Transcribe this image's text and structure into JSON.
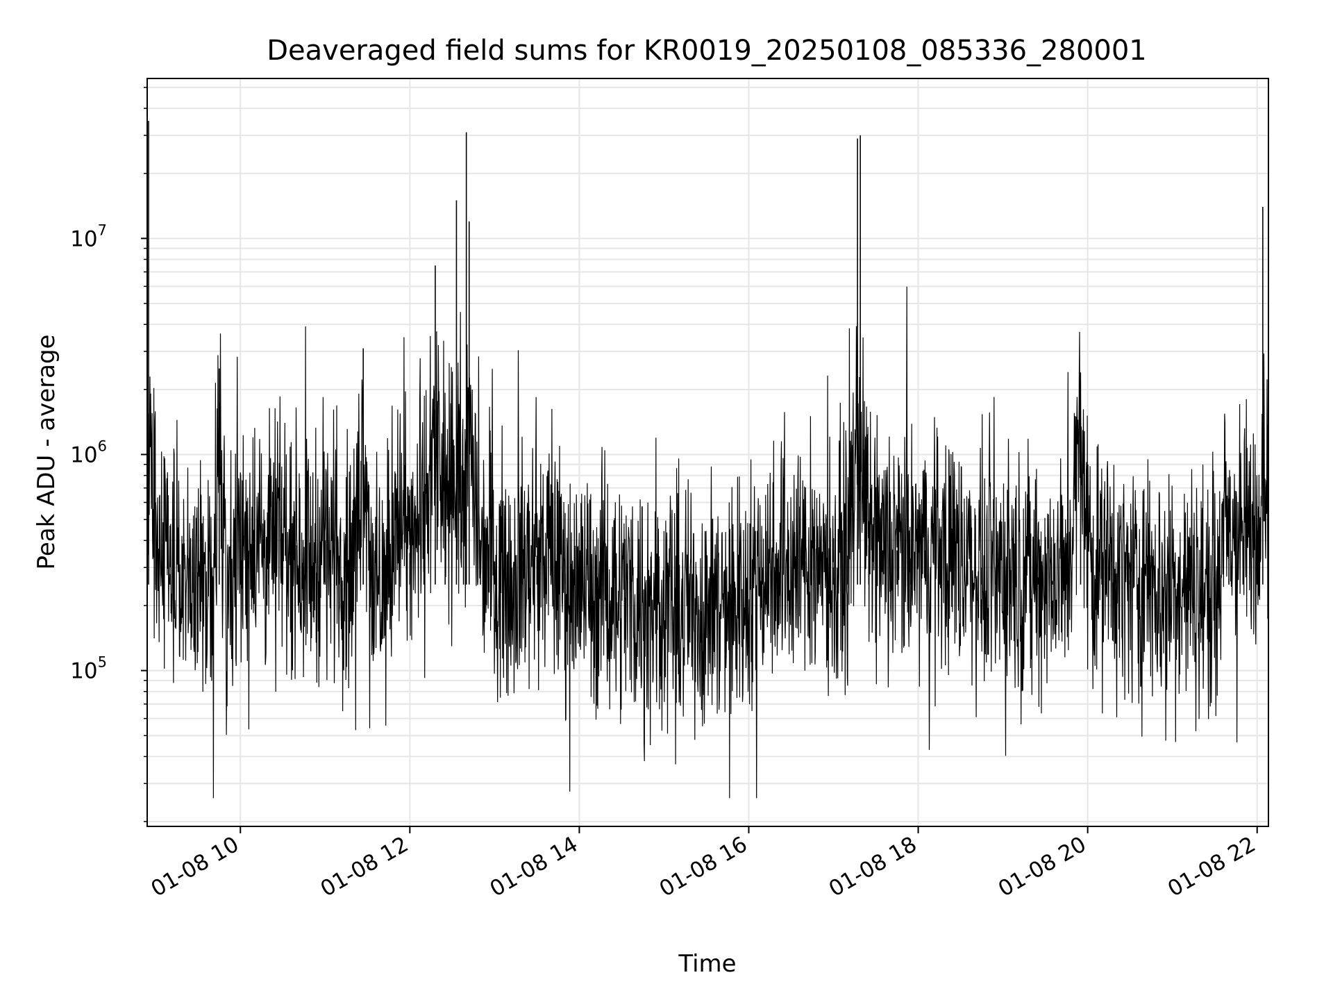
{
  "chart_data": {
    "type": "line",
    "title": "Deaveraged field sums for KR0019_20250108_085336_280001",
    "xlabel": "Time",
    "ylabel": "Peak ADU - average",
    "yscale": "log",
    "ylim": [
      19000,
      55000000
    ],
    "xlim": [
      "01-08 08:54",
      "01-08 22:08"
    ],
    "x_ticks": [
      "01-08 10",
      "01-08 12",
      "01-08 14",
      "01-08 16",
      "01-08 18",
      "01-08 20",
      "01-08 22"
    ],
    "y_ticks": [
      {
        "base": "10",
        "exp": "5",
        "value": 100000
      },
      {
        "base": "10",
        "exp": "6",
        "value": 1000000
      },
      {
        "base": "10",
        "exp": "7",
        "value": 10000000
      }
    ],
    "grid": true,
    "line_color": "#000000",
    "grid_color": "#e6e6e6",
    "series": [
      {
        "x": [
          "01-08 08:54",
          "01-08 08:55",
          "01-08 09:00",
          "01-08 09:10",
          "01-08 09:20",
          "01-08 09:30",
          "01-08 09:40",
          "01-08 09:45",
          "01-08 09:50",
          "01-08 10:00",
          "01-08 10:10",
          "01-08 10:20",
          "01-08 10:30",
          "01-08 10:40",
          "01-08 10:50",
          "01-08 11:00",
          "01-08 11:10",
          "01-08 11:20",
          "01-08 11:27",
          "01-08 11:35",
          "01-08 11:45",
          "01-08 11:50",
          "01-08 12:00",
          "01-08 12:10",
          "01-08 12:18",
          "01-08 12:25",
          "01-08 12:33",
          "01-08 12:38",
          "01-08 12:40",
          "01-08 12:42",
          "01-08 12:50",
          "01-08 13:00",
          "01-08 13:10",
          "01-08 13:20",
          "01-08 13:30",
          "01-08 13:40",
          "01-08 13:50",
          "01-08 14:00",
          "01-08 14:10",
          "01-08 14:20",
          "01-08 14:30",
          "01-08 14:40",
          "01-08 14:50",
          "01-08 15:00",
          "01-08 15:10",
          "01-08 15:20",
          "01-08 15:30",
          "01-08 15:40",
          "01-08 15:50",
          "01-08 16:00",
          "01-08 16:10",
          "01-08 16:20",
          "01-08 16:30",
          "01-08 16:40",
          "01-08 16:50",
          "01-08 17:00",
          "01-08 17:10",
          "01-08 17:17",
          "01-08 17:19",
          "01-08 17:25",
          "01-08 17:35",
          "01-08 17:45",
          "01-08 17:55",
          "01-08 18:05",
          "01-08 18:15",
          "01-08 18:25",
          "01-08 18:35",
          "01-08 18:45",
          "01-08 18:55",
          "01-08 19:05",
          "01-08 19:15",
          "01-08 19:25",
          "01-08 19:35",
          "01-08 19:45",
          "01-08 19:55",
          "01-08 20:00",
          "01-08 20:10",
          "01-08 20:20",
          "01-08 20:30",
          "01-08 20:40",
          "01-08 20:50",
          "01-08 21:00",
          "01-08 21:10",
          "01-08 21:20",
          "01-08 21:30",
          "01-08 21:40",
          "01-08 21:50",
          "01-08 22:00",
          "01-08 22:04",
          "01-08 22:08"
        ],
        "y": [
          360000,
          35000000,
          600000,
          280000,
          250000,
          220000,
          300000,
          2500000,
          240000,
          380000,
          450000,
          350000,
          420000,
          380000,
          310000,
          400000,
          340000,
          290000,
          3100000,
          200000,
          260000,
          650000,
          350000,
          500000,
          7500000,
          450000,
          15000000,
          600000,
          31000000,
          12000000,
          400000,
          320000,
          260000,
          320000,
          340000,
          330000,
          280000,
          230000,
          240000,
          240000,
          230000,
          220000,
          210000,
          220000,
          200000,
          200000,
          190000,
          210000,
          200000,
          230000,
          300000,
          330000,
          300000,
          320000,
          310000,
          300000,
          340000,
          29000000,
          30000000,
          380000,
          360000,
          360000,
          330000,
          360000,
          380000,
          340000,
          320000,
          300000,
          300000,
          290000,
          280000,
          270000,
          260000,
          280000,
          1400000,
          350000,
          300000,
          280000,
          260000,
          250000,
          240000,
          230000,
          240000,
          230000,
          250000,
          450000,
          420000,
          460000,
          14000000,
          550000
        ]
      }
    ]
  }
}
